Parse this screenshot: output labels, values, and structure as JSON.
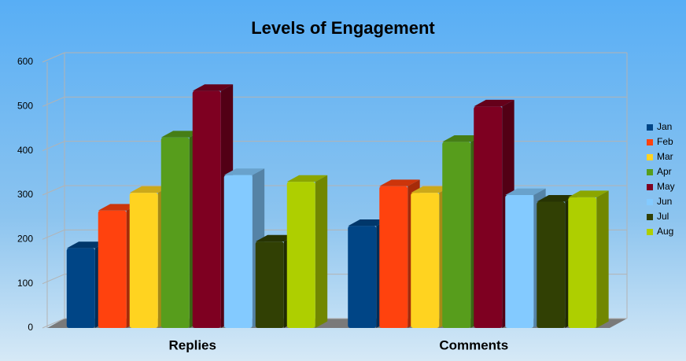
{
  "chart_data": {
    "type": "bar3d",
    "title": "Levels of Engagement",
    "categories": [
      "Replies",
      "Comments"
    ],
    "series": [
      {
        "name": "Jan",
        "color": "#004586",
        "values": [
          180,
          230
        ]
      },
      {
        "name": "Feb",
        "color": "#ff420e",
        "values": [
          265,
          320
        ]
      },
      {
        "name": "Mar",
        "color": "#ffd320",
        "values": [
          305,
          305
        ]
      },
      {
        "name": "Apr",
        "color": "#579d1c",
        "values": [
          430,
          420
        ]
      },
      {
        "name": "May",
        "color": "#7e0021",
        "values": [
          535,
          500
        ]
      },
      {
        "name": "Jun",
        "color": "#83caff",
        "values": [
          345,
          300
        ]
      },
      {
        "name": "Jul",
        "color": "#314004",
        "values": [
          195,
          285
        ]
      },
      {
        "name": "Aug",
        "color": "#aecf00",
        "values": [
          330,
          295
        ]
      }
    ],
    "ylim": [
      0,
      600
    ],
    "yticks": [
      0,
      100,
      200,
      300,
      400,
      500,
      600
    ],
    "grid": true,
    "legend": "right"
  }
}
